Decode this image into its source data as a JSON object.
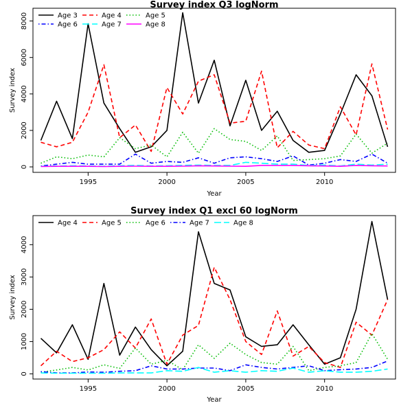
{
  "chart_data": [
    {
      "type": "line",
      "title": "Survey index Q3 logNorm",
      "xlabel": "Year",
      "ylabel": "Survey index",
      "xlim": [
        1991.5,
        2014.5
      ],
      "ylim": [
        -300,
        8700
      ],
      "x_ticks": [
        1995,
        2000,
        2005,
        2010
      ],
      "y_ticks": [
        0,
        2000,
        4000,
        6000,
        8000
      ],
      "grid": false,
      "legend_position": "top-left",
      "x": [
        1992,
        1993,
        1994,
        1995,
        1996,
        1997,
        1998,
        1999,
        2000,
        2001,
        2002,
        2003,
        2004,
        2005,
        2006,
        2007,
        2008,
        2009,
        2010,
        2011,
        2012,
        2013,
        2014
      ],
      "series": [
        {
          "name": "Age 3",
          "color": "#000000",
          "dash": "solid",
          "values": [
            1450,
            3600,
            1550,
            7850,
            3500,
            2100,
            800,
            1100,
            2000,
            8450,
            3500,
            5850,
            2250,
            4750,
            2000,
            3050,
            1450,
            800,
            900,
            2900,
            5050,
            3900,
            1100
          ]
        },
        {
          "name": "Age 4",
          "color": "#ff0000",
          "dash": "dashed",
          "values": [
            1350,
            1100,
            1350,
            3000,
            5600,
            1600,
            2300,
            850,
            4350,
            2900,
            4700,
            5050,
            2400,
            2500,
            5250,
            1050,
            1950,
            1200,
            1000,
            3300,
            1750,
            5650,
            2050
          ]
        },
        {
          "name": "Age 5",
          "color": "#00bb00",
          "dash": "dotted",
          "values": [
            200,
            550,
            450,
            650,
            550,
            1600,
            1000,
            1200,
            550,
            1900,
            750,
            2100,
            1500,
            1400,
            900,
            1700,
            350,
            400,
            450,
            600,
            1800,
            750,
            1300
          ]
        },
        {
          "name": "Age 6",
          "color": "#0000ff",
          "dash": "dotdash",
          "values": [
            50,
            150,
            250,
            150,
            150,
            150,
            700,
            200,
            300,
            250,
            500,
            200,
            500,
            550,
            450,
            300,
            600,
            100,
            200,
            400,
            300,
            700,
            200
          ]
        },
        {
          "name": "Age 7",
          "color": "#00ffff",
          "dash": "longdash",
          "values": [
            30,
            50,
            60,
            50,
            40,
            60,
            80,
            50,
            60,
            80,
            100,
            80,
            80,
            250,
            200,
            150,
            150,
            80,
            100,
            50,
            150,
            100,
            150
          ]
        },
        {
          "name": "Age 8",
          "color": "#ff00ff",
          "dash": "solid",
          "values": [
            20,
            30,
            30,
            30,
            20,
            30,
            40,
            30,
            30,
            40,
            60,
            50,
            40,
            30,
            80,
            80,
            80,
            60,
            50,
            30,
            80,
            60,
            50
          ]
        }
      ]
    },
    {
      "type": "line",
      "title": "Survey index Q1 excl 60 logNorm",
      "xlabel": "Year",
      "ylabel": "Survey index",
      "xlim": [
        1991.5,
        2014.5
      ],
      "ylim": [
        -160,
        4900
      ],
      "x_ticks": [
        1995,
        2000,
        2005,
        2010
      ],
      "y_ticks": [
        0,
        1000,
        2000,
        3000,
        4000
      ],
      "grid": false,
      "legend_position": "top",
      "x": [
        1992,
        1993,
        1994,
        1995,
        1996,
        1997,
        1998,
        1999,
        2000,
        2001,
        2002,
        2003,
        2004,
        2005,
        2006,
        2007,
        2008,
        2009,
        2010,
        2011,
        2012,
        2013,
        2014
      ],
      "series": [
        {
          "name": "Age 4",
          "color": "#000000",
          "dash": "solid",
          "values": [
            1100,
            650,
            1520,
            450,
            2800,
            580,
            1450,
            750,
            250,
            700,
            4400,
            2800,
            2600,
            1150,
            850,
            900,
            1520,
            900,
            300,
            500,
            2000,
            4720,
            2300
          ]
        },
        {
          "name": "Age 5",
          "color": "#ff0000",
          "dash": "dashed",
          "values": [
            250,
            700,
            380,
            500,
            750,
            1300,
            800,
            1700,
            300,
            1200,
            1500,
            3300,
            2300,
            1000,
            600,
            1950,
            550,
            850,
            350,
            200,
            1600,
            1200,
            2300
          ]
        },
        {
          "name": "Age 6",
          "color": "#00bb00",
          "dash": "dotted",
          "values": [
            50,
            120,
            200,
            120,
            280,
            170,
            800,
            300,
            420,
            130,
            900,
            480,
            950,
            600,
            350,
            300,
            850,
            100,
            200,
            250,
            350,
            1250,
            450
          ]
        },
        {
          "name": "Age 7",
          "color": "#0000ff",
          "dash": "dotdash",
          "values": [
            70,
            30,
            30,
            60,
            50,
            80,
            100,
            250,
            150,
            150,
            180,
            180,
            100,
            280,
            200,
            150,
            200,
            250,
            100,
            130,
            150,
            200,
            400
          ]
        },
        {
          "name": "Age 8",
          "color": "#00ffff",
          "dash": "longdash",
          "values": [
            30,
            20,
            20,
            20,
            20,
            30,
            30,
            30,
            100,
            80,
            200,
            50,
            100,
            50,
            100,
            80,
            180,
            50,
            100,
            50,
            50,
            80,
            150
          ]
        }
      ]
    }
  ]
}
